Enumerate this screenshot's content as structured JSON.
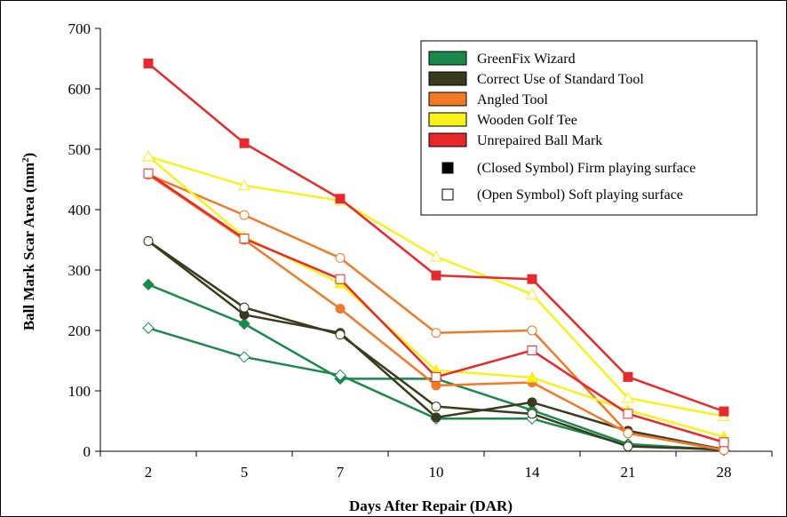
{
  "chart_data": {
    "type": "line",
    "title": "",
    "xlabel": "Days After Repair (DAR)",
    "ylabel": "Ball Mark Scar Area (mm²)",
    "ylabel_parts": {
      "main": "Ball Mark Scar Area (mm",
      "sup": "2",
      "close": ")"
    },
    "categories": [
      "2",
      "5",
      "7",
      "10",
      "14",
      "21",
      "28"
    ],
    "ylim": [
      0,
      700
    ],
    "yticks": [
      "0",
      "100",
      "200",
      "300",
      "400",
      "500",
      "600",
      "700"
    ],
    "grid": false,
    "legend_position": "top-right",
    "colors": {
      "greenfix": "#1a8a4a",
      "standard": "#3a3a1e",
      "angled": "#f07a28",
      "tee": "#f6f21a",
      "unrepaired": "#e8282a",
      "marker_edge": "#000000"
    },
    "legend": {
      "series": [
        {
          "label": "GreenFix Wizard",
          "color_key": "greenfix"
        },
        {
          "label": "Correct Use of Standard Tool",
          "color_key": "standard"
        },
        {
          "label": "Angled Tool",
          "color_key": "angled"
        },
        {
          "label": "Wooden Golf Tee",
          "color_key": "tee"
        },
        {
          "label": "Unrepaired Ball Mark",
          "color_key": "unrepaired"
        }
      ],
      "symbols": [
        {
          "label": "(Closed Symbol) Firm playing surface",
          "filled": true
        },
        {
          "label": "(Open Symbol) Soft playing surface",
          "filled": false
        }
      ]
    },
    "series": [
      {
        "color_key": "greenfix",
        "marker": "diamond",
        "filled": true,
        "values": [
          276,
          211,
          120,
          120,
          68,
          12,
          2
        ]
      },
      {
        "color_key": "greenfix",
        "marker": "diamond",
        "filled": false,
        "values": [
          204,
          156,
          126,
          54,
          54,
          10,
          2
        ]
      },
      {
        "color_key": "standard",
        "marker": "circle",
        "filled": true,
        "values": [
          348,
          226,
          196,
          56,
          81,
          34,
          3
        ]
      },
      {
        "color_key": "standard",
        "marker": "circle",
        "filled": false,
        "values": [
          348,
          238,
          193,
          74,
          62,
          8,
          3
        ]
      },
      {
        "color_key": "angled",
        "marker": "circle",
        "filled": true,
        "values": [
          458,
          350,
          236,
          109,
          114,
          30,
          2
        ]
      },
      {
        "color_key": "angled",
        "marker": "circle",
        "filled": false,
        "values": [
          458,
          391,
          320,
          196,
          200,
          30,
          2
        ]
      },
      {
        "color_key": "tee",
        "marker": "triangle",
        "filled": true,
        "values": [
          488,
          355,
          278,
          134,
          122,
          68,
          24
        ]
      },
      {
        "color_key": "tee",
        "marker": "triangle",
        "filled": false,
        "values": [
          488,
          440,
          415,
          322,
          260,
          88,
          58
        ]
      },
      {
        "color_key": "unrepaired",
        "marker": "square",
        "filled": true,
        "values": [
          642,
          510,
          418,
          291,
          285,
          123,
          66
        ]
      },
      {
        "color_key": "unrepaired",
        "marker": "square",
        "filled": false,
        "values": [
          460,
          352,
          285,
          123,
          167,
          62,
          15
        ]
      }
    ]
  }
}
